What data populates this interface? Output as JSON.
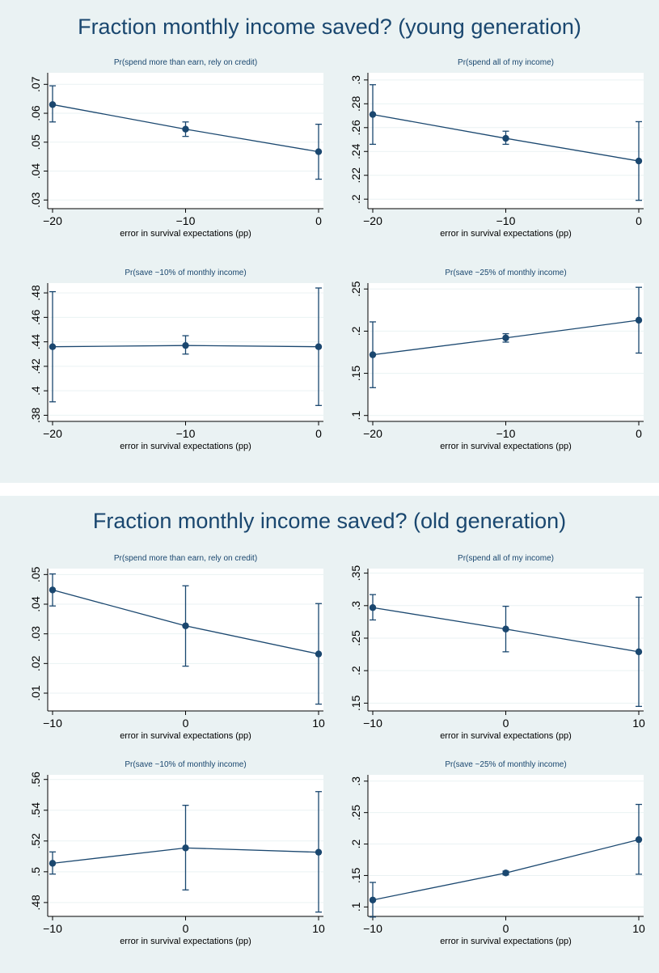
{
  "panels": [
    {
      "title": "Fraction monthly income saved? (young generation)",
      "subplots": [
        {
          "title": "Pr(spend more than earn, rely on credit)",
          "xlabel": "error in survival expectations (pp)",
          "yticks": [
            ".03",
            ".04",
            ".05",
            ".06",
            ".07"
          ],
          "ytick_values": [
            0.03,
            0.04,
            0.05,
            0.06,
            0.07
          ],
          "ylim": [
            0.027,
            0.074
          ]
        },
        {
          "title": "Pr(spend all of my income)",
          "xlabel": "error in survival expectations (pp)",
          "yticks": [
            ".2",
            ".22",
            ".24",
            ".26",
            ".28",
            ".3"
          ],
          "ytick_values": [
            0.2,
            0.22,
            0.24,
            0.26,
            0.28,
            0.3
          ],
          "ylim": [
            0.192,
            0.306
          ]
        },
        {
          "title": "Pr(save ~10% of monthly income)",
          "xlabel": "error in survival expectations (pp)",
          "yticks": [
            ".38",
            ".4",
            ".42",
            ".44",
            ".46",
            ".48"
          ],
          "ytick_values": [
            0.38,
            0.4,
            0.42,
            0.44,
            0.46,
            0.48
          ],
          "ylim": [
            0.375,
            0.488
          ]
        },
        {
          "title": "Pr(save ~25% of monthly income)",
          "xlabel": "error in survival expectations (pp)",
          "yticks": [
            ".1",
            ".15",
            ".2",
            ".25"
          ],
          "ytick_values": [
            0.1,
            0.15,
            0.2,
            0.25
          ],
          "ylim": [
            0.093,
            0.257
          ]
        }
      ]
    },
    {
      "title": "Fraction monthly income saved? (old generation)",
      "subplots": [
        {
          "title": "Pr(spend more than earn, rely on credit)",
          "xlabel": "error in survival expectations (pp)",
          "yticks": [
            ".01",
            ".02",
            ".03",
            ".04",
            ".05"
          ],
          "ytick_values": [
            0.01,
            0.02,
            0.03,
            0.04,
            0.05
          ],
          "ylim": [
            0.004,
            0.052
          ]
        },
        {
          "title": "Pr(spend all of my income)",
          "xlabel": "error in survival expectations (pp)",
          "yticks": [
            ".15",
            ".2",
            ".25",
            ".3",
            ".35"
          ],
          "ytick_values": [
            0.15,
            0.2,
            0.25,
            0.3,
            0.35
          ],
          "ylim": [
            0.138,
            0.357
          ]
        },
        {
          "title": "Pr(save ~10% of monthly income)",
          "xlabel": "error in survival expectations (pp)",
          "yticks": [
            ".48",
            ".5",
            ".52",
            ".54",
            ".56"
          ],
          "ytick_values": [
            0.48,
            0.5,
            0.52,
            0.54,
            0.56
          ],
          "ylim": [
            0.471,
            0.563
          ]
        },
        {
          "title": "Pr(save ~25% of monthly income)",
          "xlabel": "error in survival expectations (pp)",
          "yticks": [
            ".1",
            ".15",
            ".2",
            ".25",
            ".3"
          ],
          "ytick_values": [
            0.1,
            0.15,
            0.2,
            0.25,
            0.3
          ],
          "ylim": [
            0.085,
            0.31
          ]
        }
      ]
    }
  ],
  "chart_data": [
    {
      "type": "line",
      "title": "Pr(spend more than earn, rely on credit)",
      "xlabel": "error in survival expectations (pp)",
      "x": [
        -20,
        -10,
        0
      ],
      "xticks": [
        "−20",
        "−10",
        "0"
      ],
      "xlim": [
        -20,
        0
      ],
      "y": [
        0.063,
        0.0545,
        0.0467
      ],
      "ci_low": [
        0.057,
        0.052,
        0.0372
      ],
      "ci_high": [
        0.0695,
        0.057,
        0.0562
      ]
    },
    {
      "type": "line",
      "title": "Pr(spend all of my income)",
      "xlabel": "error in survival expectations (pp)",
      "x": [
        -20,
        -10,
        0
      ],
      "xticks": [
        "−20",
        "−10",
        "0"
      ],
      "xlim": [
        -20,
        0
      ],
      "y": [
        0.271,
        0.251,
        0.232
      ],
      "ci_low": [
        0.246,
        0.246,
        0.199
      ],
      "ci_high": [
        0.296,
        0.257,
        0.265
      ]
    },
    {
      "type": "line",
      "title": "Pr(save ~10% of monthly income)",
      "xlabel": "error in survival expectations (pp)",
      "x": [
        -20,
        -10,
        0
      ],
      "xticks": [
        "−20",
        "−10",
        "0"
      ],
      "xlim": [
        -20,
        0
      ],
      "y": [
        0.436,
        0.437,
        0.436
      ],
      "ci_low": [
        0.391,
        0.43,
        0.388
      ],
      "ci_high": [
        0.481,
        0.445,
        0.484
      ]
    },
    {
      "type": "line",
      "title": "Pr(save ~25% of monthly income)",
      "xlabel": "error in survival expectations (pp)",
      "x": [
        -20,
        -10,
        0
      ],
      "xticks": [
        "−20",
        "−10",
        "0"
      ],
      "xlim": [
        -20,
        0
      ],
      "y": [
        0.172,
        0.192,
        0.213
      ],
      "ci_low": [
        0.133,
        0.187,
        0.174
      ],
      "ci_high": [
        0.211,
        0.197,
        0.252
      ]
    },
    {
      "type": "line",
      "title": "Pr(spend more than earn, rely on credit)",
      "xlabel": "error in survival expectations (pp)",
      "x": [
        -10,
        0,
        10
      ],
      "xticks": [
        "−10",
        "0",
        "10"
      ],
      "xlim": [
        -10,
        10
      ],
      "y": [
        0.0448,
        0.0327,
        0.0232
      ],
      "ci_low": [
        0.0394,
        0.0191,
        0.0063
      ],
      "ci_high": [
        0.0502,
        0.0462,
        0.0402
      ]
    },
    {
      "type": "line",
      "title": "Pr(spend all of my income)",
      "xlabel": "error in survival expectations (pp)",
      "x": [
        -10,
        0,
        10
      ],
      "xticks": [
        "−10",
        "0",
        "10"
      ],
      "xlim": [
        -10,
        10
      ],
      "y": [
        0.297,
        0.264,
        0.229
      ],
      "ci_low": [
        0.278,
        0.229,
        0.145
      ],
      "ci_high": [
        0.317,
        0.299,
        0.313
      ]
    },
    {
      "type": "line",
      "title": "Pr(save ~10% of monthly income)",
      "xlabel": "error in survival expectations (pp)",
      "x": [
        -10,
        0,
        10
      ],
      "xticks": [
        "−10",
        "0",
        "10"
      ],
      "xlim": [
        -10,
        10
      ],
      "y": [
        0.5055,
        0.5155,
        0.5127
      ],
      "ci_low": [
        0.4985,
        0.4882,
        0.4738
      ],
      "ci_high": [
        0.5129,
        0.5432,
        0.5521
      ]
    },
    {
      "type": "line",
      "title": "Pr(save ~25% of monthly income)",
      "xlabel": "error in survival expectations (pp)",
      "x": [
        -10,
        0,
        10
      ],
      "xticks": [
        "−10",
        "0",
        "10"
      ],
      "xlim": [
        -10,
        10
      ],
      "y": [
        0.111,
        0.154,
        0.207
      ],
      "ci_low": [
        0.084,
        0.151,
        0.152
      ],
      "ci_high": [
        0.139,
        0.157,
        0.263
      ]
    }
  ],
  "colors": {
    "panel_background": "#eaf2f3",
    "plot_background": "#ffffff",
    "series": "#1a476f",
    "gridline": "#eaf2f3",
    "title": "#1a476f"
  }
}
